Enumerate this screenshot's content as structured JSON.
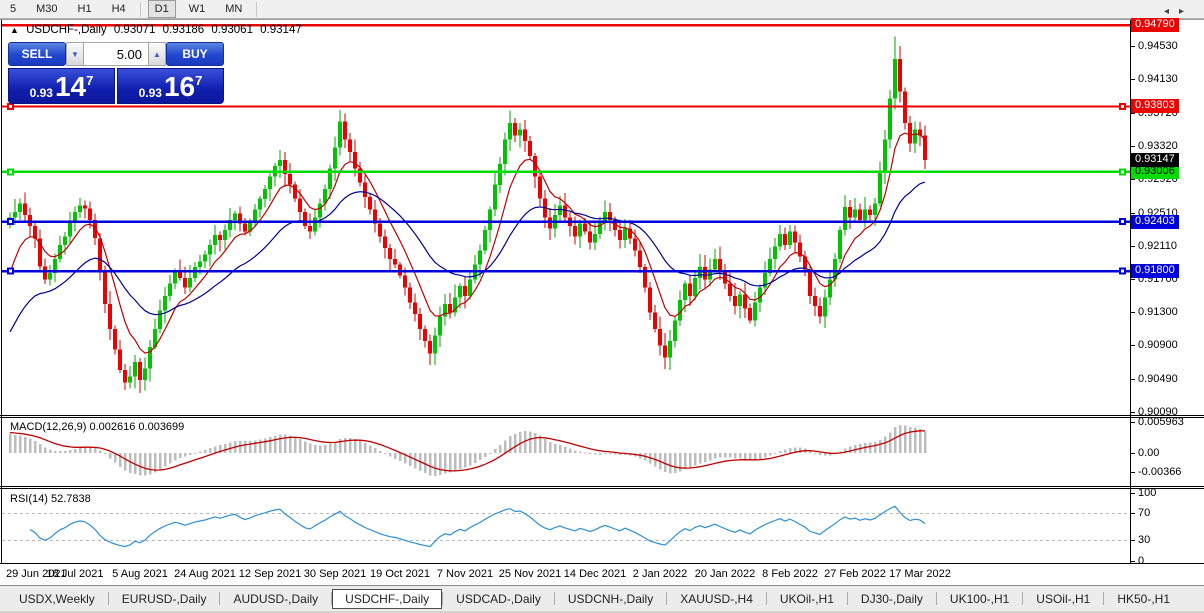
{
  "toolbar": {
    "timeframes": [
      {
        "label": "5",
        "active": false,
        "sep_after": false
      },
      {
        "label": "M30",
        "active": false,
        "sep_after": false
      },
      {
        "label": "H1",
        "active": false,
        "sep_after": false
      },
      {
        "label": "H4",
        "active": false,
        "sep_after": true
      },
      {
        "label": "D1",
        "active": true,
        "sep_after": false
      },
      {
        "label": "W1",
        "active": false,
        "sep_after": false
      },
      {
        "label": "MN",
        "active": false,
        "sep_after": true
      }
    ]
  },
  "chart": {
    "collapse_glyph": "▲",
    "title_symbol": "USDCHF-,Daily",
    "quote_open": "0.93071",
    "quote_high": "0.93186",
    "quote_low": "0.93061",
    "quote_close": "0.93147"
  },
  "trade": {
    "sell_label": "SELL",
    "buy_label": "BUY",
    "volume": "5.00",
    "down_glyph": "▼",
    "up_glyph": "▲",
    "sell": {
      "prefix": "0.93",
      "big": "14",
      "sup": "7"
    },
    "buy": {
      "prefix": "0.93",
      "big": "16",
      "sup": "7"
    }
  },
  "macd_panel": {
    "label": "MACD(12,26,9) 0.002616 0.003699",
    "ticks": [
      {
        "label": "0.005963",
        "value": 0.005963
      },
      {
        "label": "0.00",
        "value": 0.0
      },
      {
        "label": "-0.00366",
        "value": -0.00366
      }
    ]
  },
  "rsi_panel": {
    "label": "RSI(14) 52.7838",
    "ticks": [
      {
        "label": "100",
        "value": 100
      },
      {
        "label": "70",
        "value": 70
      },
      {
        "label": "30",
        "value": 30
      },
      {
        "label": "0",
        "value": 0
      }
    ],
    "levels": [
      70,
      30
    ]
  },
  "tabs": {
    "items": [
      {
        "label": "USDX,Weekly",
        "active": false
      },
      {
        "label": "EURUSD-,Daily",
        "active": false
      },
      {
        "label": "AUDUSD-,Daily",
        "active": false
      },
      {
        "label": "USDCHF-,Daily",
        "active": true
      },
      {
        "label": "USDCAD-,Daily",
        "active": false
      },
      {
        "label": "USDCNH-,Daily",
        "active": false
      },
      {
        "label": "XAUUSD-,H4",
        "active": false
      },
      {
        "label": "UKOil-,H1",
        "active": false
      },
      {
        "label": "DJ30-,Daily",
        "active": false
      },
      {
        "label": "UK100-,H1",
        "active": false
      },
      {
        "label": "USOil-,H1",
        "active": false
      },
      {
        "label": "HK50-,H1",
        "active": false
      }
    ],
    "arrow_left": "◂",
    "arrow_right": "▸"
  },
  "chart_data": {
    "type": "candlestick",
    "title": "USDCHF-,Daily",
    "price_min_visible": 0.9009,
    "price_max_visible": 0.9479,
    "y_axis_ticks": [
      "0.94530",
      "0.94130",
      "0.93720",
      "0.93320",
      "0.92920",
      "0.92510",
      "0.92110",
      "0.91700",
      "0.91300",
      "0.90900",
      "0.90490",
      "0.90090"
    ],
    "x_axis_dates": [
      "29 Jun 2021",
      "18 Jul 2021",
      "5 Aug 2021",
      "24 Aug 2021",
      "12 Sep 2021",
      "30 Sep 2021",
      "19 Oct 2021",
      "7 Nov 2021",
      "25 Nov 2021",
      "14 Dec 2021",
      "2 Jan 2022",
      "20 Jan 2022",
      "8 Feb 2022",
      "27 Feb 2022",
      "17 Mar 2022"
    ],
    "bars_per_date_tick": 13,
    "first_open": 0.924,
    "closes": [
      0.9245,
      0.9252,
      0.9262,
      0.9248,
      0.9235,
      0.922,
      0.9186,
      0.917,
      0.9178,
      0.9195,
      0.9212,
      0.9222,
      0.924,
      0.9252,
      0.926,
      0.9256,
      0.9242,
      0.922,
      0.918,
      0.914,
      0.911,
      0.9085,
      0.906,
      0.9045,
      0.9052,
      0.907,
      0.9048,
      0.9062,
      0.9088,
      0.911,
      0.9132,
      0.915,
      0.9165,
      0.918,
      0.9172,
      0.916,
      0.9172,
      0.9185,
      0.9192,
      0.92,
      0.9212,
      0.9224,
      0.9218,
      0.923,
      0.9242,
      0.925,
      0.9238,
      0.9228,
      0.924,
      0.9255,
      0.9268,
      0.928,
      0.9295,
      0.9308,
      0.9315,
      0.9298,
      0.9285,
      0.9268,
      0.9252,
      0.9235,
      0.9228,
      0.9245,
      0.9262,
      0.928,
      0.9305,
      0.933,
      0.9362,
      0.934,
      0.9325,
      0.9305,
      0.9288,
      0.927,
      0.9255,
      0.9238,
      0.9222,
      0.9208,
      0.9195,
      0.9188,
      0.9175,
      0.916,
      0.9142,
      0.9128,
      0.911,
      0.9095,
      0.908,
      0.9102,
      0.9125,
      0.914,
      0.913,
      0.9148,
      0.9162,
      0.915,
      0.917,
      0.9188,
      0.9205,
      0.923,
      0.9255,
      0.9285,
      0.931,
      0.934,
      0.936,
      0.9345,
      0.9352,
      0.9338,
      0.932,
      0.9295,
      0.9268,
      0.9245,
      0.9232,
      0.9248,
      0.926,
      0.9245,
      0.9235,
      0.9222,
      0.9238,
      0.9228,
      0.9215,
      0.9225,
      0.924,
      0.9252,
      0.9242,
      0.923,
      0.9218,
      0.9232,
      0.922,
      0.9205,
      0.9185,
      0.916,
      0.913,
      0.911,
      0.909,
      0.9075,
      0.9095,
      0.912,
      0.9145,
      0.9165,
      0.915,
      0.9172,
      0.9185,
      0.917,
      0.9182,
      0.9195,
      0.918,
      0.9165,
      0.915,
      0.9138,
      0.9152,
      0.9135,
      0.912,
      0.9142,
      0.916,
      0.9178,
      0.9195,
      0.921,
      0.9225,
      0.9212,
      0.9228,
      0.9215,
      0.9198,
      0.9182,
      0.915,
      0.9138,
      0.9125,
      0.9148,
      0.917,
      0.9195,
      0.923,
      0.9258,
      0.9245,
      0.9255,
      0.9242,
      0.9255,
      0.9248,
      0.9262,
      0.93,
      0.934,
      0.939,
      0.9438,
      0.9398,
      0.936,
      0.9335,
      0.9352,
      0.9345,
      0.93147
    ],
    "wick_hi_extra": {
      "54": 0.0012,
      "66": 0.0014,
      "100": 0.0015,
      "177": 0.0027
    },
    "wick_lo_extra": {
      "26": 0.0016,
      "84": 0.0014,
      "131": 0.0014,
      "147": 0.0012
    },
    "horizontal_lines": [
      {
        "price": 0.9479,
        "label": "0.94790",
        "color": "#EC0000",
        "tag_fg": "#ffffff",
        "width": 2.5,
        "anchors": false
      },
      {
        "price": 0.93803,
        "label": "0.93803",
        "color": "#EC0000",
        "tag_fg": "#ffffff",
        "width": 2,
        "anchors": true
      },
      {
        "price": 0.93006,
        "label": "0.93006",
        "color": "#00DC00",
        "tag_fg": "#000000",
        "width": 2.5,
        "anchors": true
      },
      {
        "price": 0.92403,
        "label": "0.92403",
        "color": "#0000DC",
        "tag_fg": "#ffffff",
        "width": 2.5,
        "anchors": true
      },
      {
        "price": 0.918,
        "label": "0.91800",
        "color": "#0000DC",
        "tag_fg": "#ffffff",
        "width": 2.5,
        "anchors": true
      }
    ],
    "current_price": {
      "value": 0.93147,
      "label": "0.93147",
      "tag_bg": "#000000",
      "tag_fg": "#ffffff"
    },
    "colors": {
      "up": "#00C400",
      "down": "#EC0000",
      "wick_up": "#00A800",
      "wick_down": "#D00000",
      "ma_fast": "#C00000",
      "ma_slow": "#00009A",
      "macd_hist": "#BDBDBD",
      "macd_signal": "#C00000",
      "rsi_line": "#2F8FD4",
      "rsi_level": "#b8b8b8"
    },
    "moving_averages": [
      {
        "name": "ma-fast-red",
        "k": 0.22,
        "seed": 0.916
      },
      {
        "name": "ma-slow-blue",
        "k": 0.075,
        "seed": 0.9095
      }
    ],
    "macd": {
      "k_fast": 0.1538,
      "k_slow": 0.0741,
      "k_signal": 0.2,
      "seed_fast": 0.9245,
      "seed_slow": 0.9205,
      "seed_signal": 0.004,
      "current_main": 0.002616,
      "current_signal": 0.003699
    },
    "rsi": {
      "period": 14,
      "current": 52.7838
    }
  }
}
